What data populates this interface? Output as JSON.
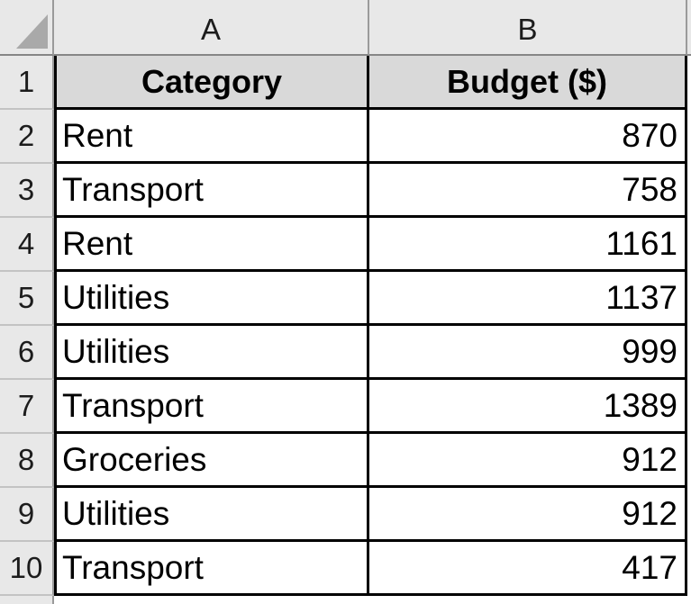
{
  "sheet": {
    "corner": {
      "icon": "select-all-triangle"
    },
    "columns": [
      "A",
      "B"
    ],
    "header_row": {
      "num": "1",
      "category_label": "Category",
      "budget_label": "Budget ($)"
    },
    "rows": [
      {
        "num": "2",
        "category": "Rent",
        "budget": "870"
      },
      {
        "num": "3",
        "category": "Transport",
        "budget": "758"
      },
      {
        "num": "4",
        "category": "Rent",
        "budget": "1161"
      },
      {
        "num": "5",
        "category": "Utilities",
        "budget": "1137"
      },
      {
        "num": "6",
        "category": "Utilities",
        "budget": "999"
      },
      {
        "num": "7",
        "category": "Transport",
        "budget": "1389"
      },
      {
        "num": "8",
        "category": "Groceries",
        "budget": "912"
      },
      {
        "num": "9",
        "category": "Utilities",
        "budget": "912"
      },
      {
        "num": "10",
        "category": "Transport",
        "budget": "417"
      }
    ],
    "colors": {
      "header_bg": "#e8e8e8",
      "table_header_fill": "#d9d9d9",
      "table_border": "#000000",
      "header_grid": "#9a9a9a",
      "select_all_triangle": "#a9a9a9",
      "text": "#000000"
    }
  }
}
